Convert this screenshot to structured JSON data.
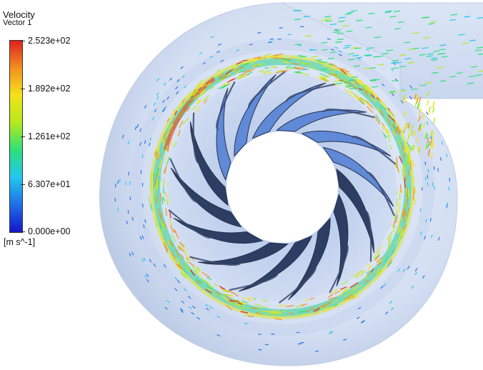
{
  "legend": {
    "title": "Velocity",
    "subtitle": "Vector 1",
    "max_label": "2.523e+02",
    "tick_labels": [
      "1.892e+02",
      "1.261e+02",
      "6.307e+01"
    ],
    "min_label": "0.000e+00",
    "units": "[m s^-1]",
    "colormap": [
      "#1515cc",
      "#1f6fe6",
      "#22c6f0",
      "#2ee07a",
      "#b4ea1c",
      "#f4e21a",
      "#f39020",
      "#e02020"
    ]
  },
  "scene": {
    "blade_count": 14,
    "colors": {
      "casing": "#d6e1f3",
      "casing_shadow": "#b8c6e0",
      "impeller_disc": "#c3d2ee",
      "blade_dark": "#27365c",
      "blade_light": "#5b86d6",
      "eye": "#ffffff"
    }
  }
}
